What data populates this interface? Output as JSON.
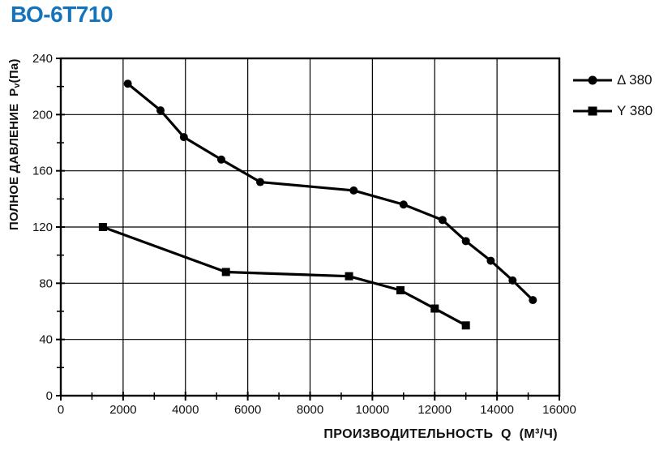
{
  "styles": {
    "title_color": "#1373BC",
    "axis_color": "#000000",
    "text_color": "#111111",
    "background": "#FFFFFF"
  },
  "chart_data": {
    "type": "line",
    "title": "ВО-6Т710",
    "xlabel": "ПРОИЗВОДИТЕЛЬНОСТЬ  Q  (М³/Ч)",
    "ylabel": "ПОЛНОЕ ДАВЛЕНИЕ  Pv(Па)",
    "xlim": [
      0,
      16000
    ],
    "ylim": [
      0,
      240
    ],
    "x_ticks": [
      0,
      2000,
      4000,
      6000,
      8000,
      10000,
      12000,
      14000,
      16000
    ],
    "y_ticks": [
      0,
      40,
      80,
      120,
      160,
      200,
      240
    ],
    "x_major_step": 2000,
    "x_minor_step": 1000,
    "y_major_step": 40,
    "y_minor_step": 20,
    "grid": true,
    "legend_position": "right",
    "series": [
      {
        "name": "Δ 380",
        "marker": "circle",
        "color": "#000000",
        "points": [
          [
            2150,
            222
          ],
          [
            3200,
            203
          ],
          [
            3950,
            184
          ],
          [
            5150,
            168
          ],
          [
            6400,
            152
          ],
          [
            9400,
            146
          ],
          [
            11000,
            136
          ],
          [
            12250,
            125
          ],
          [
            13000,
            110
          ],
          [
            13800,
            96
          ],
          [
            14500,
            82
          ],
          [
            15150,
            68
          ]
        ]
      },
      {
        "name": "Y 380",
        "marker": "square",
        "color": "#000000",
        "points": [
          [
            1350,
            120
          ],
          [
            5300,
            88
          ],
          [
            9250,
            85
          ],
          [
            10900,
            75
          ],
          [
            12000,
            62
          ],
          [
            13000,
            50
          ]
        ]
      }
    ]
  }
}
